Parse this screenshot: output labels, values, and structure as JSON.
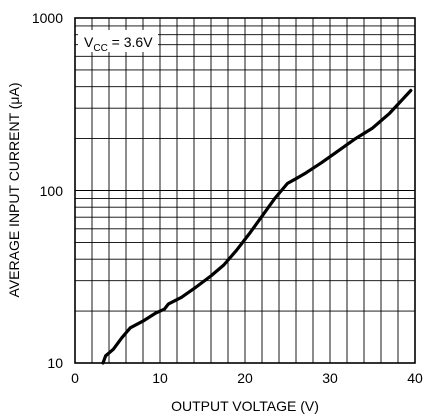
{
  "chart_data": {
    "type": "line",
    "title": "",
    "xlabel": "OUTPUT VOLTAGE (V)",
    "ylabel": "AVERAGE INPUT CURRENT (μA)",
    "x_scale": "linear",
    "y_scale": "log",
    "xlim": [
      0,
      40
    ],
    "ylim": [
      10,
      1000
    ],
    "x_ticks": [
      "0",
      "10",
      "20",
      "30",
      "40"
    ],
    "y_ticks": [
      "10",
      "100",
      "1000"
    ],
    "grid": true,
    "annotation": {
      "prefix": "V",
      "subscript": "CC",
      "suffix": " = 3.6V"
    },
    "series": [
      {
        "x": [
          3.3,
          3.6,
          4.5,
          5.5,
          6.5,
          8,
          9.5,
          10.5,
          11,
          12.5,
          14,
          16,
          17.5,
          19,
          20.5,
          22,
          23.5,
          25,
          26,
          27,
          29,
          31,
          33,
          35,
          37,
          39.5
        ],
        "y": [
          10,
          11,
          12,
          14,
          16,
          17.5,
          19.5,
          20.5,
          22,
          24,
          27,
          32,
          37,
          45,
          56,
          71,
          90,
          110,
          117,
          125,
          145,
          170,
          200,
          230,
          280,
          380
        ]
      }
    ]
  }
}
